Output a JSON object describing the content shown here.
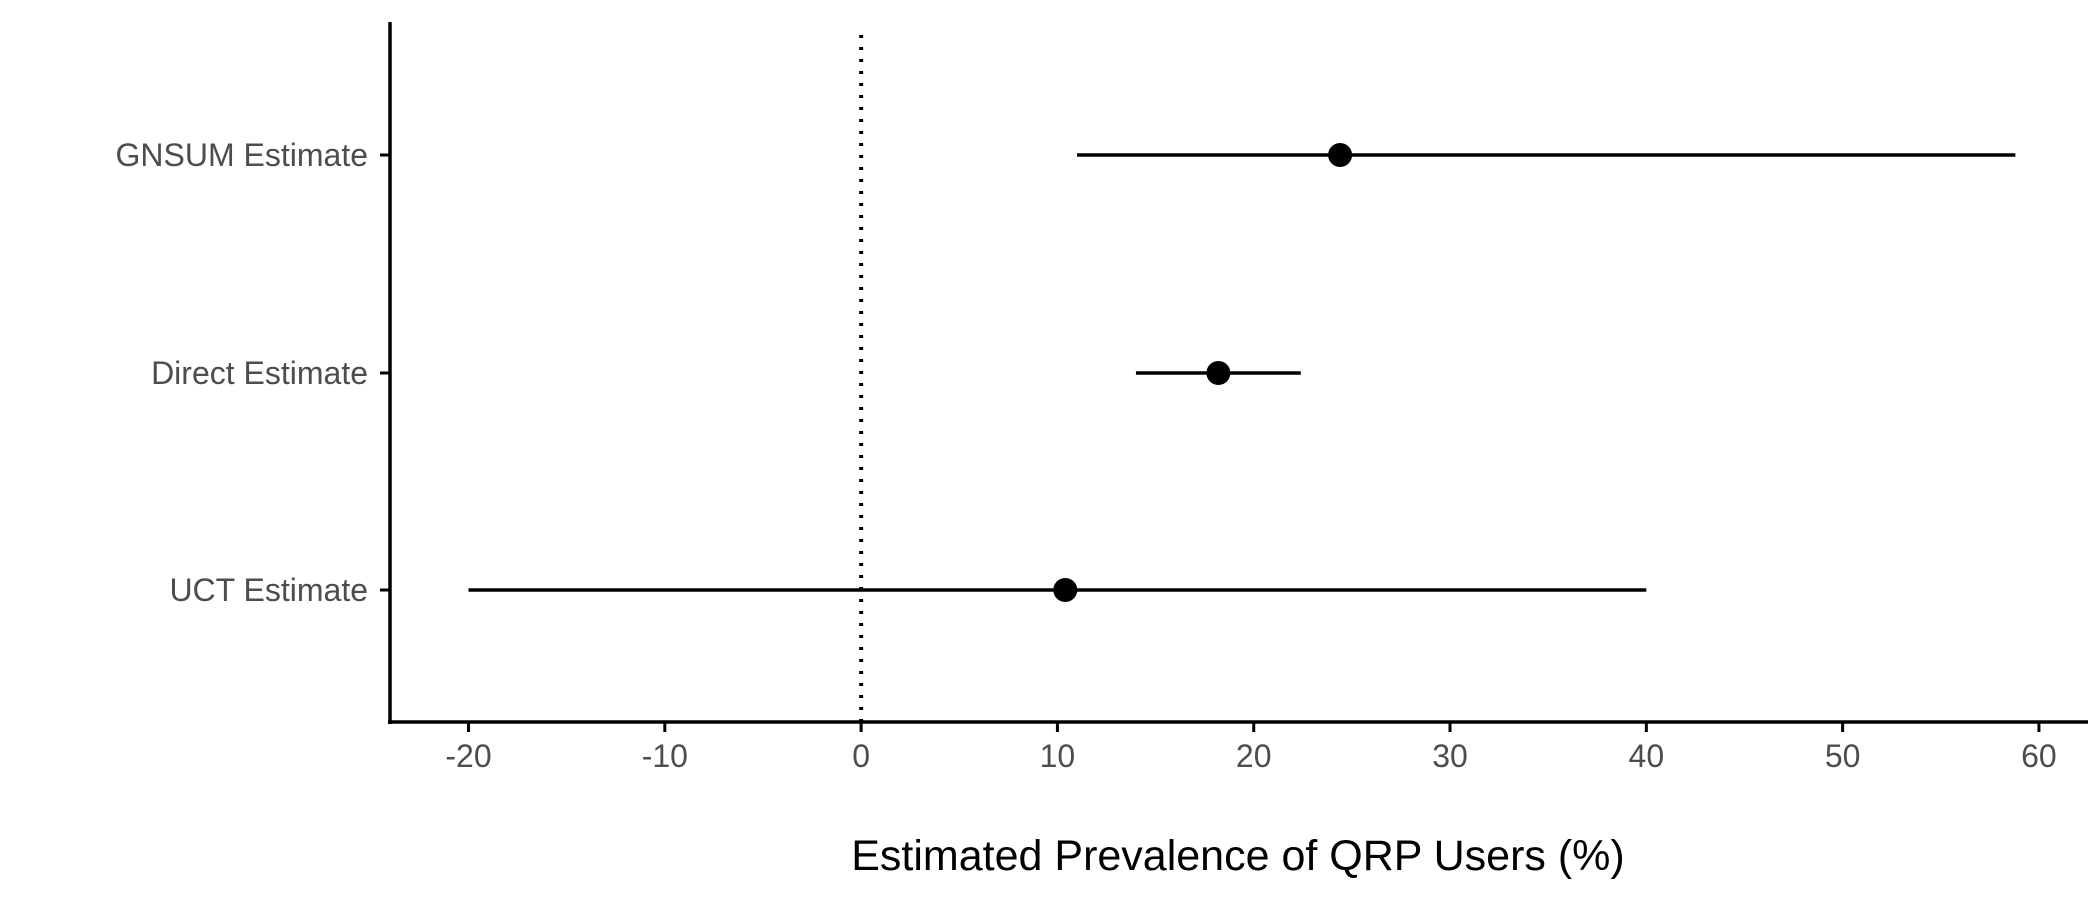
{
  "chart_data": {
    "type": "scatter",
    "subtype": "forest-plot",
    "title": "",
    "xlabel": "Estimated Prevalence of QRP Users (%)",
    "ylabel": "",
    "xlim": [
      -24,
      62.5
    ],
    "xticks": [
      -20,
      -10,
      0,
      10,
      20,
      30,
      40,
      50,
      60
    ],
    "xtick_labels": [
      "-20",
      "-10",
      "0",
      "10",
      "20",
      "30",
      "40",
      "50",
      "60"
    ],
    "reference_line": {
      "x": 0,
      "style": "dotted"
    },
    "grid": false,
    "legend": "none",
    "categories": [
      "GNSUM Estimate",
      "Direct Estimate",
      "UCT Estimate"
    ],
    "points": [
      {
        "label": "GNSUM Estimate",
        "estimate": 24.4,
        "lower": 11.0,
        "upper": 58.8
      },
      {
        "label": "Direct Estimate",
        "estimate": 18.2,
        "lower": 14.0,
        "upper": 22.4
      },
      {
        "label": "UCT Estimate",
        "estimate": 10.4,
        "lower": -20.0,
        "upper": 40.0
      }
    ],
    "colors": {
      "marks": "#000000",
      "tick_text": "#4d4d4d",
      "axis": "#000000"
    }
  }
}
